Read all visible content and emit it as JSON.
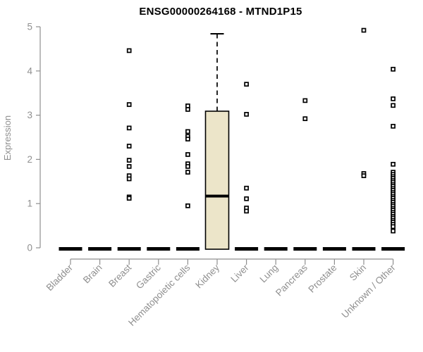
{
  "colors": {
    "background": "#ffffff",
    "title_text": "#000000",
    "axis": "#8f8f8f",
    "tick_text": "#8f8f8f",
    "box_fill": "#ece5c9",
    "box_stroke": "#000000",
    "median": "#000000",
    "outlier": "#000000"
  },
  "chart_data": {
    "type": "boxplot",
    "title": "ENSG00000264168 - MTND1P15",
    "xlabel": "",
    "ylabel": "Expression",
    "ylim": [
      0,
      5
    ],
    "yticks": [
      0,
      1,
      2,
      3,
      4,
      5
    ],
    "grid": false,
    "legend": false,
    "categories": [
      "Bladder",
      "Brain",
      "Breast",
      "Gastric",
      "Hematopoietic cells",
      "Kidney",
      "Liver",
      "Lung",
      "Pancreas",
      "Prostate",
      "Skin",
      "Unknown / Other"
    ],
    "series": [
      {
        "name": "Bladder",
        "box": {
          "low": 0,
          "q1": 0,
          "median": 0,
          "q3": 0,
          "high": 0
        },
        "outliers": []
      },
      {
        "name": "Brain",
        "box": {
          "low": 0,
          "q1": 0,
          "median": 0,
          "q3": 0,
          "high": 0
        },
        "outliers": []
      },
      {
        "name": "Breast",
        "box": {
          "low": 0,
          "q1": 0,
          "median": 0,
          "q3": 0,
          "high": 0
        },
        "outliers": [
          4.46,
          3.24,
          2.71,
          2.3,
          1.98,
          1.84,
          1.63,
          1.56,
          1.15,
          1.12
        ]
      },
      {
        "name": "Gastric",
        "box": {
          "low": 0,
          "q1": 0,
          "median": 0,
          "q3": 0,
          "high": 0
        },
        "outliers": []
      },
      {
        "name": "Hematopoietic cells",
        "box": {
          "low": 0,
          "q1": 0,
          "median": 0,
          "q3": 0,
          "high": 0
        },
        "outliers": [
          3.21,
          3.13,
          2.63,
          2.52,
          2.46,
          2.11,
          1.9,
          1.84,
          1.71,
          0.95
        ]
      },
      {
        "name": "Kidney",
        "box": {
          "low": 0,
          "q1": 0,
          "median": 1.17,
          "q3": 3.09,
          "high": 4.84
        },
        "outliers": []
      },
      {
        "name": "Liver",
        "box": {
          "low": 0,
          "q1": 0,
          "median": 0,
          "q3": 0,
          "high": 0
        },
        "outliers": [
          3.7,
          3.02,
          1.35,
          1.11,
          0.9,
          0.83
        ]
      },
      {
        "name": "Lung",
        "box": {
          "low": 0,
          "q1": 0,
          "median": 0,
          "q3": 0,
          "high": 0
        },
        "outliers": []
      },
      {
        "name": "Pancreas",
        "box": {
          "low": 0,
          "q1": 0,
          "median": 0,
          "q3": 0,
          "high": 0
        },
        "outliers": [
          3.33,
          2.92
        ]
      },
      {
        "name": "Prostate",
        "box": {
          "low": 0,
          "q1": 0,
          "median": 0,
          "q3": 0,
          "high": 0
        },
        "outliers": []
      },
      {
        "name": "Skin",
        "box": {
          "low": 0,
          "q1": 0,
          "median": 0,
          "q3": 0,
          "high": 0
        },
        "outliers": [
          4.92,
          1.68,
          1.63
        ]
      },
      {
        "name": "Unknown / Other",
        "box": {
          "low": 0,
          "q1": 0,
          "median": 0,
          "q3": 0,
          "high": 0
        },
        "outliers": [
          4.04,
          3.37,
          3.22,
          2.75,
          1.89,
          1.71,
          1.66,
          1.61,
          1.57,
          1.52,
          1.48,
          1.43,
          1.39,
          1.34,
          1.3,
          1.25,
          1.21,
          1.16,
          1.12,
          1.07,
          1.03,
          0.98,
          0.94,
          0.89,
          0.85,
          0.8,
          0.76,
          0.71,
          0.67,
          0.62,
          0.58,
          0.53,
          0.48,
          0.38
        ]
      }
    ]
  }
}
